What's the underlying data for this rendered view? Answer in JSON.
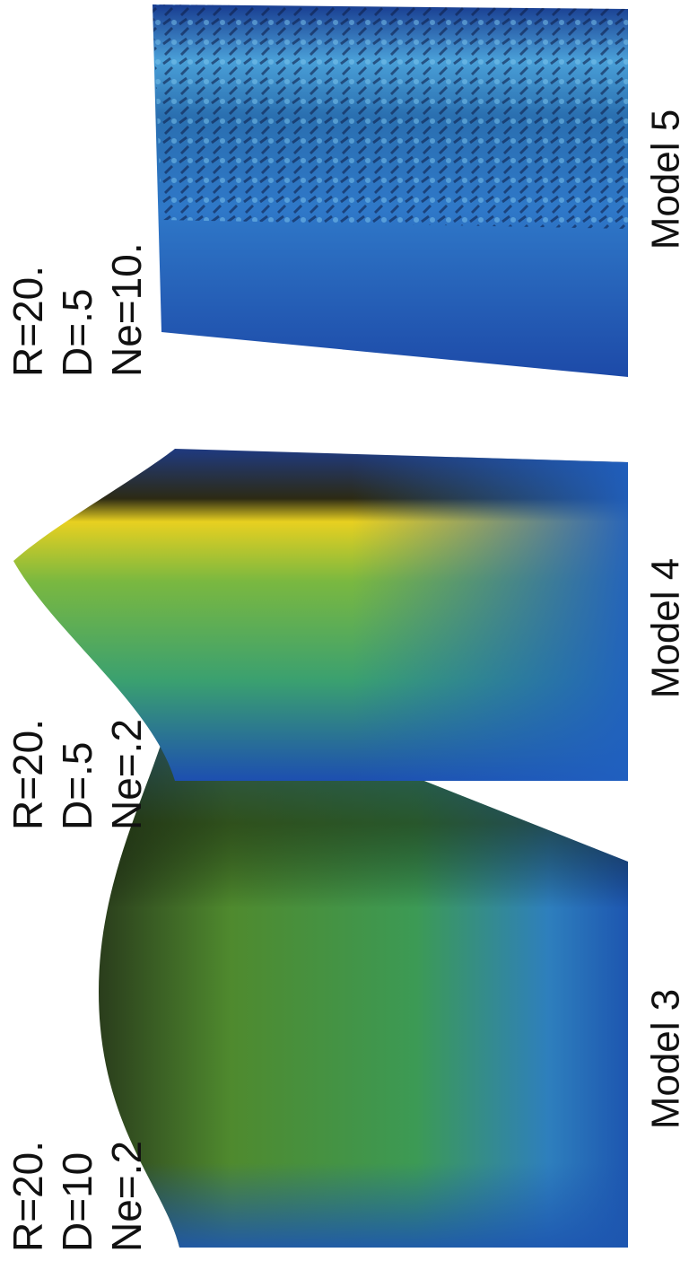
{
  "panels": [
    {
      "params": [
        "R=20.",
        "D=10",
        "Ne=.2"
      ],
      "label": "Model 3"
    },
    {
      "params": [
        "R=20.",
        "D=.5",
        "Ne=.2"
      ],
      "label": "Model 4"
    },
    {
      "params": [
        "R=20.",
        "D=.5",
        "Ne=10."
      ],
      "label": "Model 5"
    }
  ]
}
